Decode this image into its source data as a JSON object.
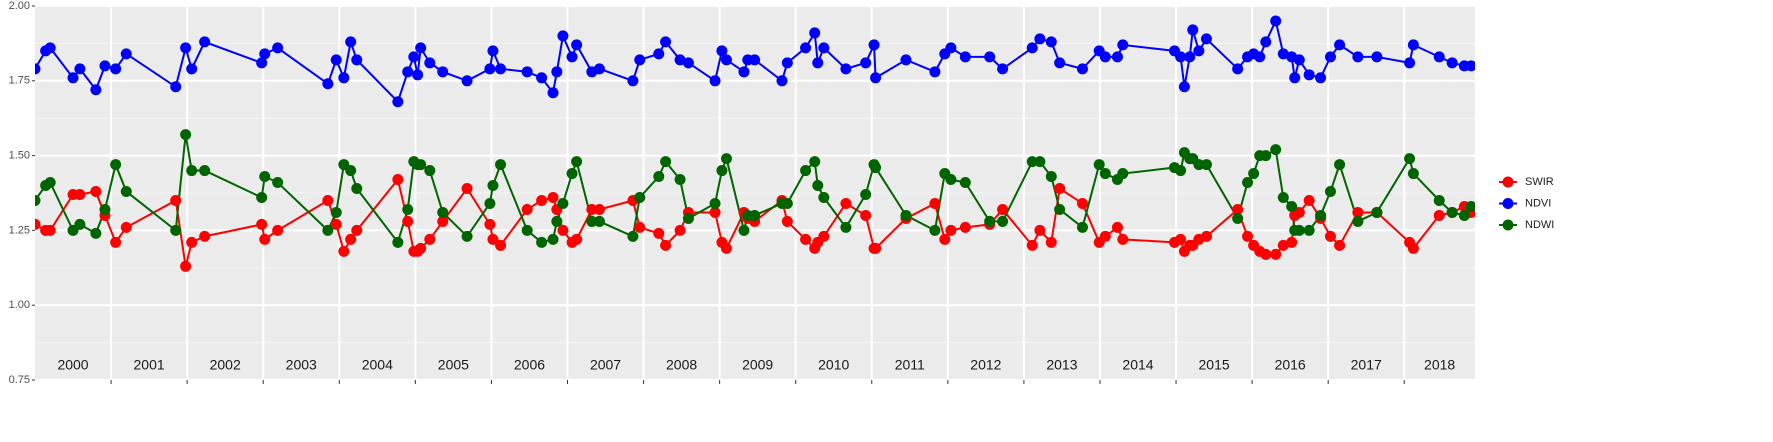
{
  "chart_data": {
    "type": "line",
    "x": [
      2000.0,
      2000.14,
      2000.2,
      2000.5,
      2000.59,
      2000.8,
      2000.92,
      2001.06,
      2001.2,
      2001.85,
      2001.98,
      2002.06,
      2002.23,
      2002.98,
      2003.02,
      2003.19,
      2003.85,
      2003.96,
      2004.06,
      2004.15,
      2004.23,
      2004.77,
      2004.9,
      2004.98,
      2005.03,
      2005.07,
      2005.19,
      2005.36,
      2005.68,
      2005.98,
      2006.02,
      2006.12,
      2006.47,
      2006.66,
      2006.81,
      2006.86,
      2006.94,
      2007.06,
      2007.12,
      2007.32,
      2007.42,
      2007.86,
      2007.95,
      2008.2,
      2008.29,
      2008.48,
      2008.59,
      2008.94,
      2009.03,
      2009.09,
      2009.32,
      2009.37,
      2009.46,
      2009.82,
      2009.89,
      2010.13,
      2010.25,
      2010.29,
      2010.37,
      2010.66,
      2010.92,
      2011.03,
      2011.05,
      2011.45,
      2011.83,
      2011.96,
      2012.04,
      2012.23,
      2012.55,
      2012.72,
      2013.11,
      2013.21,
      2013.36,
      2013.47,
      2013.77,
      2013.99,
      2014.07,
      2014.23,
      2014.3,
      2014.98,
      2015.06,
      2015.11,
      2015.18,
      2015.22,
      2015.3,
      2015.4,
      2015.81,
      2015.94,
      2016.02,
      2016.1,
      2016.18,
      2016.31,
      2016.41,
      2016.52,
      2016.56,
      2016.62,
      2016.75,
      2016.9,
      2017.03,
      2017.15,
      2017.39,
      2017.64,
      2018.07,
      2018.12,
      2018.46,
      2018.63,
      2018.79,
      2018.88
    ],
    "series": [
      {
        "name": "SWIR",
        "color": "#ff0000",
        "values": [
          1.27,
          1.25,
          1.25,
          1.37,
          1.37,
          1.38,
          1.3,
          1.21,
          1.26,
          1.35,
          1.13,
          1.21,
          1.23,
          1.27,
          1.22,
          1.25,
          1.35,
          1.27,
          1.18,
          1.22,
          1.25,
          1.42,
          1.28,
          1.18,
          1.18,
          1.19,
          1.22,
          1.28,
          1.39,
          1.27,
          1.22,
          1.2,
          1.32,
          1.35,
          1.36,
          1.32,
          1.25,
          1.21,
          1.22,
          1.32,
          1.32,
          1.35,
          1.26,
          1.24,
          1.2,
          1.25,
          1.31,
          1.31,
          1.21,
          1.19,
          1.31,
          1.29,
          1.28,
          1.35,
          1.28,
          1.22,
          1.19,
          1.21,
          1.23,
          1.34,
          1.3,
          1.19,
          1.19,
          1.29,
          1.34,
          1.22,
          1.25,
          1.26,
          1.27,
          1.32,
          1.2,
          1.25,
          1.21,
          1.39,
          1.34,
          1.21,
          1.23,
          1.26,
          1.22,
          1.21,
          1.22,
          1.18,
          1.2,
          1.2,
          1.22,
          1.23,
          1.32,
          1.23,
          1.2,
          1.18,
          1.17,
          1.17,
          1.2,
          1.21,
          1.3,
          1.31,
          1.35,
          1.29,
          1.23,
          1.2,
          1.31,
          1.31,
          1.21,
          1.19,
          1.3,
          1.31,
          1.33,
          1.31
        ]
      },
      {
        "name": "NDVI",
        "color": "#0000ff",
        "values": [
          1.79,
          1.85,
          1.86,
          1.76,
          1.79,
          1.72,
          1.8,
          1.79,
          1.84,
          1.73,
          1.86,
          1.79,
          1.88,
          1.81,
          1.84,
          1.86,
          1.74,
          1.82,
          1.76,
          1.88,
          1.82,
          1.68,
          1.78,
          1.83,
          1.77,
          1.86,
          1.81,
          1.78,
          1.75,
          1.79,
          1.85,
          1.79,
          1.78,
          1.76,
          1.71,
          1.78,
          1.9,
          1.83,
          1.87,
          1.78,
          1.79,
          1.75,
          1.82,
          1.84,
          1.88,
          1.82,
          1.81,
          1.75,
          1.85,
          1.82,
          1.78,
          1.82,
          1.82,
          1.75,
          1.81,
          1.86,
          1.91,
          1.81,
          1.86,
          1.79,
          1.81,
          1.87,
          1.76,
          1.82,
          1.78,
          1.84,
          1.86,
          1.83,
          1.83,
          1.79,
          1.86,
          1.89,
          1.88,
          1.81,
          1.79,
          1.85,
          1.83,
          1.83,
          1.87,
          1.85,
          1.83,
          1.73,
          1.83,
          1.92,
          1.85,
          1.89,
          1.79,
          1.83,
          1.84,
          1.83,
          1.88,
          1.95,
          1.84,
          1.83,
          1.76,
          1.82,
          1.77,
          1.76,
          1.83,
          1.87,
          1.83,
          1.83,
          1.81,
          1.87,
          1.83,
          1.81,
          1.8,
          1.8
        ]
      },
      {
        "name": "NDWI",
        "color": "#006400",
        "values": [
          1.35,
          1.4,
          1.41,
          1.25,
          1.27,
          1.24,
          1.32,
          1.47,
          1.38,
          1.25,
          1.57,
          1.45,
          1.45,
          1.36,
          1.43,
          1.41,
          1.25,
          1.31,
          1.47,
          1.45,
          1.39,
          1.21,
          1.32,
          1.48,
          1.47,
          1.47,
          1.45,
          1.31,
          1.23,
          1.34,
          1.4,
          1.47,
          1.25,
          1.21,
          1.22,
          1.28,
          1.34,
          1.44,
          1.48,
          1.28,
          1.28,
          1.23,
          1.36,
          1.43,
          1.48,
          1.42,
          1.29,
          1.34,
          1.45,
          1.49,
          1.25,
          1.3,
          1.3,
          1.34,
          1.34,
          1.45,
          1.48,
          1.4,
          1.36,
          1.26,
          1.37,
          1.47,
          1.46,
          1.3,
          1.25,
          1.44,
          1.42,
          1.41,
          1.28,
          1.28,
          1.48,
          1.48,
          1.43,
          1.32,
          1.26,
          1.47,
          1.44,
          1.42,
          1.44,
          1.46,
          1.45,
          1.51,
          1.49,
          1.49,
          1.47,
          1.47,
          1.29,
          1.41,
          1.44,
          1.5,
          1.5,
          1.52,
          1.36,
          1.33,
          1.25,
          1.25,
          1.25,
          1.3,
          1.38,
          1.47,
          1.28,
          1.31,
          1.49,
          1.44,
          1.35,
          1.31,
          1.3,
          1.33
        ]
      }
    ],
    "year_labels": [
      "2000",
      "2001",
      "2002",
      "2003",
      "2004",
      "2005",
      "2006",
      "2007",
      "2008",
      "2009",
      "2010",
      "2011",
      "2012",
      "2013",
      "2014",
      "2015",
      "2016",
      "2017",
      "2018"
    ],
    "xlim": [
      2000,
      2018.93
    ],
    "xticks": [
      2001,
      2002,
      2003,
      2004,
      2005,
      2006,
      2007,
      2008,
      2009,
      2010,
      2011,
      2012,
      2013,
      2014,
      2015,
      2016,
      2017,
      2018
    ],
    "ylim": [
      0.75,
      2.0
    ],
    "yticks": [
      0.75,
      {
        "value": 1.0,
        "label": "1.00"
      },
      1.25,
      {
        "value": 1.5,
        "label": "1.50"
      },
      1.75,
      {
        "value": 2.0,
        "label": "2.00"
      }
    ],
    "yminor": [
      0.875,
      1.125,
      1.375,
      1.625,
      1.875
    ],
    "grid": true,
    "legend": "right"
  }
}
